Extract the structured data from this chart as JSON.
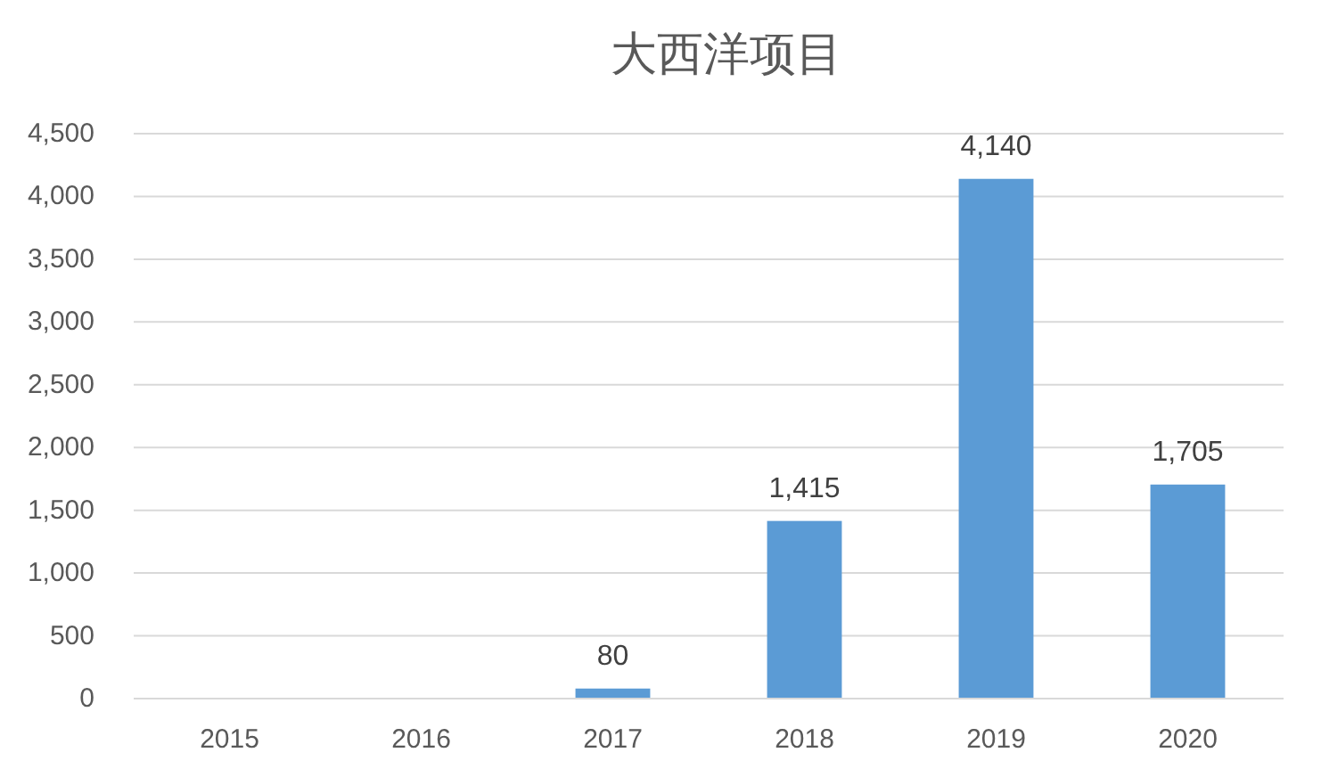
{
  "chart_data": {
    "type": "bar",
    "title": "大西洋项目",
    "categories": [
      "2015",
      "2016",
      "2017",
      "2018",
      "2019",
      "2020"
    ],
    "values": [
      0,
      0,
      80,
      1415,
      4140,
      1705
    ],
    "value_labels": [
      null,
      null,
      "80",
      "1,415",
      "4,140",
      "1,705"
    ],
    "color": "#5b9bd5",
    "ylim": [
      0,
      4500
    ],
    "yticks": [
      0,
      {
        "value": 500,
        "label": "500"
      },
      {
        "value": 1000,
        "label": "1,000"
      },
      {
        "value": 1500,
        "label": "1,500"
      },
      {
        "value": 2000,
        "label": "2,000"
      },
      {
        "value": 2500,
        "label": "2,500"
      },
      {
        "value": 3000,
        "label": "3,000"
      },
      {
        "value": 3500,
        "label": "3,500"
      },
      {
        "value": 4000,
        "label": "4,000"
      },
      {
        "value": 4500,
        "label": "4,500"
      }
    ],
    "grid": "y"
  }
}
